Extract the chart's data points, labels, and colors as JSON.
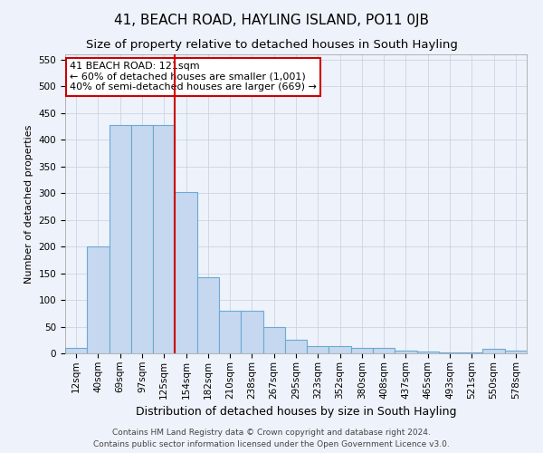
{
  "title": "41, BEACH ROAD, HAYLING ISLAND, PO11 0JB",
  "subtitle": "Size of property relative to detached houses in South Hayling",
  "xlabel": "Distribution of detached houses by size in South Hayling",
  "ylabel": "Number of detached properties",
  "footer_line1": "Contains HM Land Registry data © Crown copyright and database right 2024.",
  "footer_line2": "Contains public sector information licensed under the Open Government Licence v3.0.",
  "annotation_line1": "41 BEACH ROAD: 121sqm",
  "annotation_line2": "← 60% of detached houses are smaller (1,001)",
  "annotation_line3": "40% of semi-detached houses are larger (669) →",
  "bar_labels": [
    "12sqm",
    "40sqm",
    "69sqm",
    "97sqm",
    "125sqm",
    "154sqm",
    "182sqm",
    "210sqm",
    "238sqm",
    "267sqm",
    "295sqm",
    "323sqm",
    "352sqm",
    "380sqm",
    "408sqm",
    "437sqm",
    "465sqm",
    "493sqm",
    "521sqm",
    "550sqm",
    "578sqm"
  ],
  "bar_values": [
    10,
    200,
    428,
    428,
    428,
    302,
    143,
    80,
    80,
    50,
    25,
    13,
    13,
    10,
    10,
    5,
    3,
    2,
    2,
    8,
    5
  ],
  "bar_color": "#c5d8ef",
  "bar_edge_color": "#6aaad4",
  "reference_line_color": "#cc0000",
  "ylim": [
    0,
    560
  ],
  "yticks": [
    0,
    50,
    100,
    150,
    200,
    250,
    300,
    350,
    400,
    450,
    500,
    550
  ],
  "bg_color": "#eef2fa",
  "plot_bg_color": "#eef2fa",
  "annotation_box_color": "#ffffff",
  "annotation_box_edge_color": "#cc0000",
  "title_fontsize": 11,
  "subtitle_fontsize": 9.5,
  "xlabel_fontsize": 9,
  "ylabel_fontsize": 8,
  "tick_fontsize": 7.5,
  "annotation_fontsize": 8,
  "footer_fontsize": 6.5
}
